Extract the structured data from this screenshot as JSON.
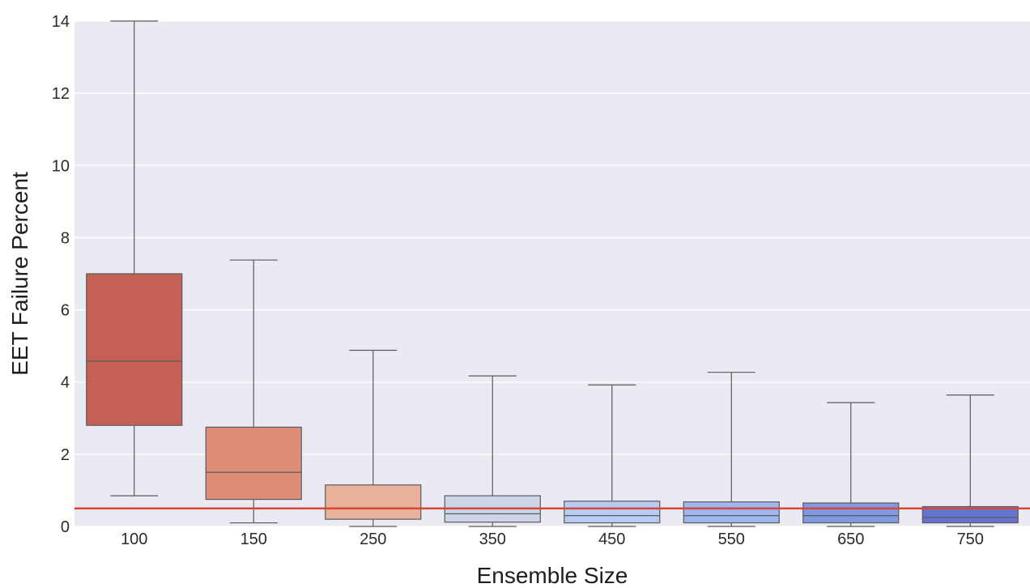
{
  "chart_data": {
    "type": "box",
    "title": "",
    "xlabel": "Ensemble Size",
    "ylabel": "EET Failure Percent",
    "ylim": [
      0,
      14
    ],
    "yticks": [
      0,
      2,
      4,
      6,
      8,
      10,
      12,
      14
    ],
    "grid": true,
    "background": "#EAEAF2",
    "reference_line": {
      "y": 0.5,
      "color": "#D9473A"
    },
    "categories": [
      "100",
      "150",
      "250",
      "350",
      "450",
      "550",
      "650",
      "750"
    ],
    "boxes": [
      {
        "category": "100",
        "whisker_low": 0.85,
        "q1": 2.8,
        "median": 4.58,
        "q3": 7.0,
        "whisker_high": 14.0,
        "color": "#C46154"
      },
      {
        "category": "150",
        "whisker_low": 0.1,
        "q1": 0.75,
        "median": 1.5,
        "q3": 2.75,
        "whisker_high": 7.38,
        "color": "#DE8D77"
      },
      {
        "category": "250",
        "whisker_low": 0.0,
        "q1": 0.2,
        "median": 0.5,
        "q3": 1.15,
        "whisker_high": 4.88,
        "color": "#EBB29B"
      },
      {
        "category": "350",
        "whisker_low": 0.0,
        "q1": 0.12,
        "median": 0.35,
        "q3": 0.85,
        "whisker_high": 4.17,
        "color": "#CCD6E8"
      },
      {
        "category": "450",
        "whisker_low": 0.0,
        "q1": 0.1,
        "median": 0.3,
        "q3": 0.7,
        "whisker_high": 3.92,
        "color": "#B7CCF2"
      },
      {
        "category": "550",
        "whisker_low": 0.0,
        "q1": 0.1,
        "median": 0.3,
        "q3": 0.68,
        "whisker_high": 4.27,
        "color": "#9EB7F0"
      },
      {
        "category": "650",
        "whisker_low": 0.0,
        "q1": 0.1,
        "median": 0.3,
        "q3": 0.65,
        "whisker_high": 3.43,
        "color": "#8099E0"
      },
      {
        "category": "750",
        "whisker_low": 0.0,
        "q1": 0.1,
        "median": 0.25,
        "q3": 0.55,
        "whisker_high": 3.64,
        "color": "#6574CE"
      }
    ]
  }
}
